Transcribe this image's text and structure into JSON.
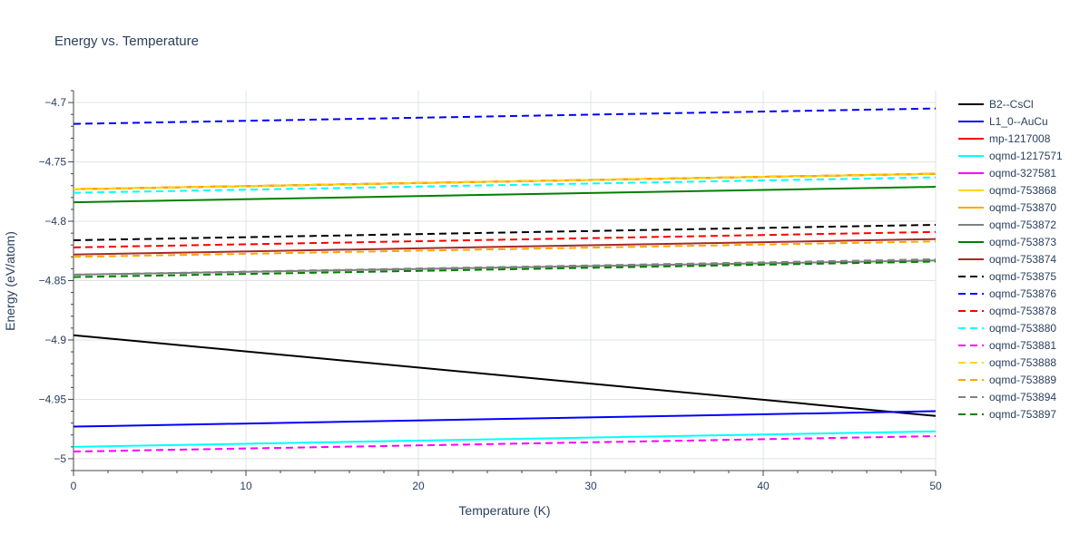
{
  "chart_data": {
    "type": "line",
    "title": "Energy vs. Temperature",
    "xlabel": "Temperature (K)",
    "ylabel": "Energy (eV/atom)",
    "xlim": [
      0,
      50
    ],
    "ylim": [
      -5.01,
      -4.69
    ],
    "x_ticks": [
      0,
      10,
      20,
      30,
      40,
      50
    ],
    "y_ticks": [
      -5.0,
      -4.95,
      -4.9,
      -4.85,
      -4.8,
      -4.75,
      -4.7
    ],
    "y_tick_labels": [
      "−5",
      "−4.95",
      "−4.9",
      "−4.85",
      "−4.8",
      "−4.75",
      "−4.7"
    ],
    "grid": true,
    "legend_position": "right",
    "series": [
      {
        "name": "B2--CsCl",
        "color": "#000000",
        "dash": "solid",
        "x": [
          0,
          50
        ],
        "y": [
          -4.896,
          -4.964
        ]
      },
      {
        "name": "L1_0--AuCu",
        "color": "#0000ff",
        "dash": "solid",
        "x": [
          0,
          50
        ],
        "y": [
          -4.973,
          -4.96
        ]
      },
      {
        "name": "mp-1217008",
        "color": "#ff0000",
        "dash": "solid",
        "x": [
          0,
          50
        ],
        "y": [
          -4.773,
          -4.76
        ]
      },
      {
        "name": "oqmd-1217571",
        "color": "#00ffff",
        "dash": "solid",
        "x": [
          0,
          50
        ],
        "y": [
          -4.99,
          -4.977
        ]
      },
      {
        "name": "oqmd-327581",
        "color": "#ff00ff",
        "dash": "solid",
        "x": [
          0,
          50
        ],
        "y": [
          -4.773,
          -4.76
        ]
      },
      {
        "name": "oqmd-753868",
        "color": "#ffd700",
        "dash": "solid",
        "x": [
          0,
          50
        ],
        "y": [
          -4.773,
          -4.76
        ]
      },
      {
        "name": "oqmd-753870",
        "color": "#ffa500",
        "dash": "solid",
        "x": [
          0,
          50
        ],
        "y": [
          -4.773,
          -4.76
        ]
      },
      {
        "name": "oqmd-753872",
        "color": "#808080",
        "dash": "solid",
        "x": [
          0,
          50
        ],
        "y": [
          -4.845,
          -4.833
        ]
      },
      {
        "name": "oqmd-753873",
        "color": "#008000",
        "dash": "solid",
        "x": [
          0,
          50
        ],
        "y": [
          -4.784,
          -4.771
        ]
      },
      {
        "name": "oqmd-753874",
        "color": "#a52a2a",
        "dash": "solid",
        "x": [
          0,
          50
        ],
        "y": [
          -4.828,
          -4.815
        ]
      },
      {
        "name": "oqmd-753875",
        "color": "#000000",
        "dash": "dash",
        "x": [
          0,
          50
        ],
        "y": [
          -4.816,
          -4.803
        ]
      },
      {
        "name": "oqmd-753876",
        "color": "#0000ff",
        "dash": "dash",
        "x": [
          0,
          50
        ],
        "y": [
          -4.718,
          -4.705
        ]
      },
      {
        "name": "oqmd-753878",
        "color": "#ff0000",
        "dash": "dash",
        "x": [
          0,
          50
        ],
        "y": [
          -4.822,
          -4.809
        ]
      },
      {
        "name": "oqmd-753880",
        "color": "#00ffff",
        "dash": "dash",
        "x": [
          0,
          50
        ],
        "y": [
          -4.776,
          -4.763
        ]
      },
      {
        "name": "oqmd-753881",
        "color": "#ff00ff",
        "dash": "dash",
        "x": [
          0,
          50
        ],
        "y": [
          -4.994,
          -4.981
        ]
      },
      {
        "name": "oqmd-753888",
        "color": "#ffd700",
        "dash": "dash",
        "x": [
          0,
          50
        ],
        "y": [
          -4.773,
          -4.76
        ]
      },
      {
        "name": "oqmd-753889",
        "color": "#ffa500",
        "dash": "dash",
        "x": [
          0,
          50
        ],
        "y": [
          -4.83,
          -4.817
        ]
      },
      {
        "name": "oqmd-753894",
        "color": "#808080",
        "dash": "dash",
        "x": [
          0,
          50
        ],
        "y": [
          -4.845,
          -4.832
        ]
      },
      {
        "name": "oqmd-753897",
        "color": "#008000",
        "dash": "dash",
        "x": [
          0,
          50
        ],
        "y": [
          -4.847,
          -4.834
        ]
      }
    ]
  }
}
